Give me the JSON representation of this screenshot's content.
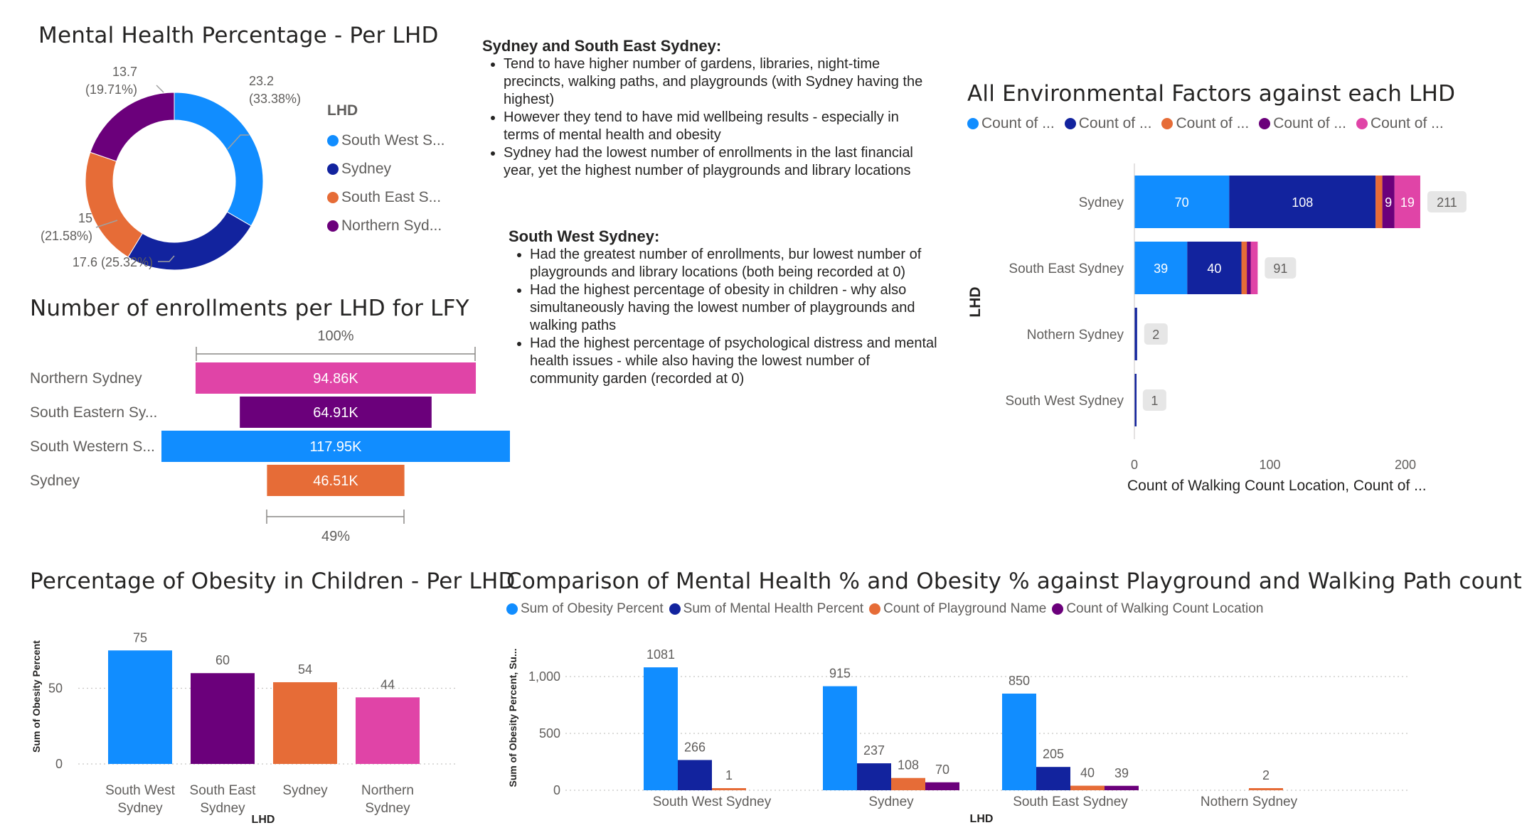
{
  "colors": {
    "blue": "#118DFF",
    "navy": "#12239E",
    "orange": "#E66C37",
    "purple": "#6B007B",
    "pink": "#E044A7",
    "grid": "#d0d0d0",
    "text": "#252423",
    "subtle": "#605e5c"
  },
  "donut": {
    "title": "Mental Health Percentage - Per LHD",
    "legend_title": "LHD",
    "legend": [
      "South West S...",
      "Sydney",
      "South East S...",
      "Northern Syd..."
    ],
    "labels": {
      "sw_value": "23.2",
      "sw_pct": "(33.38%)",
      "syd": "17.6 (25.32%)",
      "se_value": "15",
      "se_pct": "(21.58%)",
      "ns_value": "13.7",
      "ns_pct": "(19.71%)"
    }
  },
  "funnel": {
    "title": "Number of enrollments per LHD for LFY",
    "top_pct": "100%",
    "bottom_pct": "49%",
    "categories": [
      "Northern Sydney",
      "South Eastern Sy...",
      "South Western S...",
      "Sydney"
    ],
    "value_labels": [
      "94.86K",
      "64.91K",
      "117.95K",
      "46.51K"
    ]
  },
  "narrative": {
    "heading1": "Sydney and South East Sydney:",
    "bullets1": [
      "Tend to have higher number of gardens, libraries, night-time precincts, walking paths, and playgrounds (with Sydney having the highest)",
      "However they tend to have mid wellbeing results - especially in terms of mental health and obesity",
      "Sydney had the lowest number of enrollments in the last financial year, yet the highest number of playgrounds and library locations"
    ],
    "heading2": "South West Sydney:",
    "bullets2": [
      "Had the greatest number of enrollments, bur lowest number of playgrounds and library locations (both being recorded at 0)",
      "Had the highest percentage of obesity in children - why also simultaneously having the lowest number of playgrounds and walking paths",
      "Had the highest percentage of psychological distress and mental health issues - while also having the lowest number of community garden (recorded at 0)"
    ]
  },
  "env": {
    "title": "All Environmental Factors against each LHD",
    "legend": [
      "Count of ...",
      "Count of ...",
      "Count of ...",
      "Count of ...",
      "Count of ..."
    ],
    "ylabel": "LHD",
    "xlabel": "Count of Walking Count Location, Count of ...",
    "xticks": [
      "0",
      "100",
      "200"
    ],
    "categories": [
      "Sydney",
      "South East Sydney",
      "Nothern Sydney",
      "South West Sydney"
    ],
    "seg_labels": {
      "syd_blue": "70",
      "syd_navy": "108",
      "syd_purple": "9",
      "syd_pink": "19",
      "se_blue": "39",
      "se_navy": "40"
    },
    "totals": [
      "211",
      "91",
      "2",
      "1"
    ]
  },
  "obesity": {
    "title": "Percentage of Obesity in Children - Per LHD",
    "ylabel": "Sum of Obesity Percent",
    "xlabel": "LHD",
    "yticks": [
      "0",
      "50"
    ],
    "categories_line1": [
      "South West",
      "South East",
      "Sydney",
      "Northern"
    ],
    "categories_line2": [
      "Sydney",
      "Sydney",
      "",
      "Sydney"
    ],
    "value_labels": [
      "75",
      "60",
      "54",
      "44"
    ]
  },
  "comparison": {
    "title": "Comparison of Mental Health % and Obesity % against Playground and Walking Path count",
    "legend": [
      "Sum of Obesity Percent",
      "Sum of Mental Health Percent",
      "Count of Playground Name",
      "Count of Walking Count Location"
    ],
    "ylabel": "Sum of Obesity Percent, Su...",
    "xlabel": "LHD",
    "yticks": [
      "0",
      "500",
      "1,000"
    ],
    "categories": [
      "South West Sydney",
      "Sydney",
      "South East Sydney",
      "Nothern Sydney"
    ],
    "value_labels": [
      [
        "1081",
        "266",
        "1",
        ""
      ],
      [
        "915",
        "237",
        "108",
        "70"
      ],
      [
        "850",
        "205",
        "40",
        "39"
      ],
      [
        "",
        "",
        "2",
        ""
      ]
    ]
  },
  "chart_data": [
    {
      "type": "pie",
      "title": "Mental Health Percentage - Per LHD",
      "categories": [
        "South West Sydney",
        "Sydney",
        "South East Sydney",
        "Northern Sydney"
      ],
      "values": [
        23.2,
        17.6,
        15,
        13.7
      ],
      "percentages": [
        33.38,
        25.32,
        21.58,
        19.71
      ],
      "legend_title": "LHD",
      "legend_position": "right"
    },
    {
      "type": "bar",
      "orientation": "funnel",
      "title": "Number of enrollments per LHD for LFY",
      "categories": [
        "Northern Sydney",
        "South Eastern Sydney",
        "South Western Sydney",
        "Sydney"
      ],
      "values": [
        94860,
        64910,
        117950,
        46510
      ]
    },
    {
      "type": "bar",
      "orientation": "horizontal-stacked",
      "title": "All Environmental Factors against each LHD",
      "ylabel": "LHD",
      "xlabel": "Count of Walking Count Location, Count of ...",
      "categories": [
        "Sydney",
        "South East Sydney",
        "Nothern Sydney",
        "South West Sydney"
      ],
      "xlim": [
        0,
        240
      ],
      "series": [
        {
          "name": "Count of ...",
          "values": [
            70,
            39,
            0,
            0
          ]
        },
        {
          "name": "Count of ...",
          "values": [
            108,
            40,
            2,
            1
          ]
        },
        {
          "name": "Count of ...",
          "values": [
            5,
            4,
            0,
            0
          ]
        },
        {
          "name": "Count of ...",
          "values": [
            9,
            3,
            0,
            0
          ]
        },
        {
          "name": "Count of ...",
          "values": [
            19,
            5,
            0,
            0
          ]
        }
      ],
      "totals": [
        211,
        91,
        2,
        1
      ],
      "legend_position": "top"
    },
    {
      "type": "bar",
      "title": "Percentage of Obesity in Children - Per LHD",
      "categories": [
        "South West Sydney",
        "South East Sydney",
        "Sydney",
        "Northern Sydney"
      ],
      "values": [
        75,
        60,
        54,
        44
      ],
      "xlabel": "LHD",
      "ylabel": "Sum of Obesity Percent",
      "ylim": [
        0,
        90
      ],
      "grid": true
    },
    {
      "type": "bar",
      "title": "Comparison of Mental Health % and Obesity % against Playground and Walking Path count",
      "categories": [
        "South West Sydney",
        "Sydney",
        "South East Sydney",
        "Nothern Sydney"
      ],
      "series": [
        {
          "name": "Sum of Obesity Percent",
          "values": [
            1081,
            915,
            850,
            0
          ]
        },
        {
          "name": "Sum of Mental Health Percent",
          "values": [
            266,
            237,
            205,
            0
          ]
        },
        {
          "name": "Count of Playground Name",
          "values": [
            1,
            108,
            40,
            2
          ]
        },
        {
          "name": "Count of Walking Count Location",
          "values": [
            0,
            70,
            39,
            0
          ]
        }
      ],
      "xlabel": "LHD",
      "ylabel": "Sum of Obesity Percent, Su...",
      "ylim": [
        0,
        1250
      ],
      "grid": true,
      "legend_position": "top"
    }
  ]
}
